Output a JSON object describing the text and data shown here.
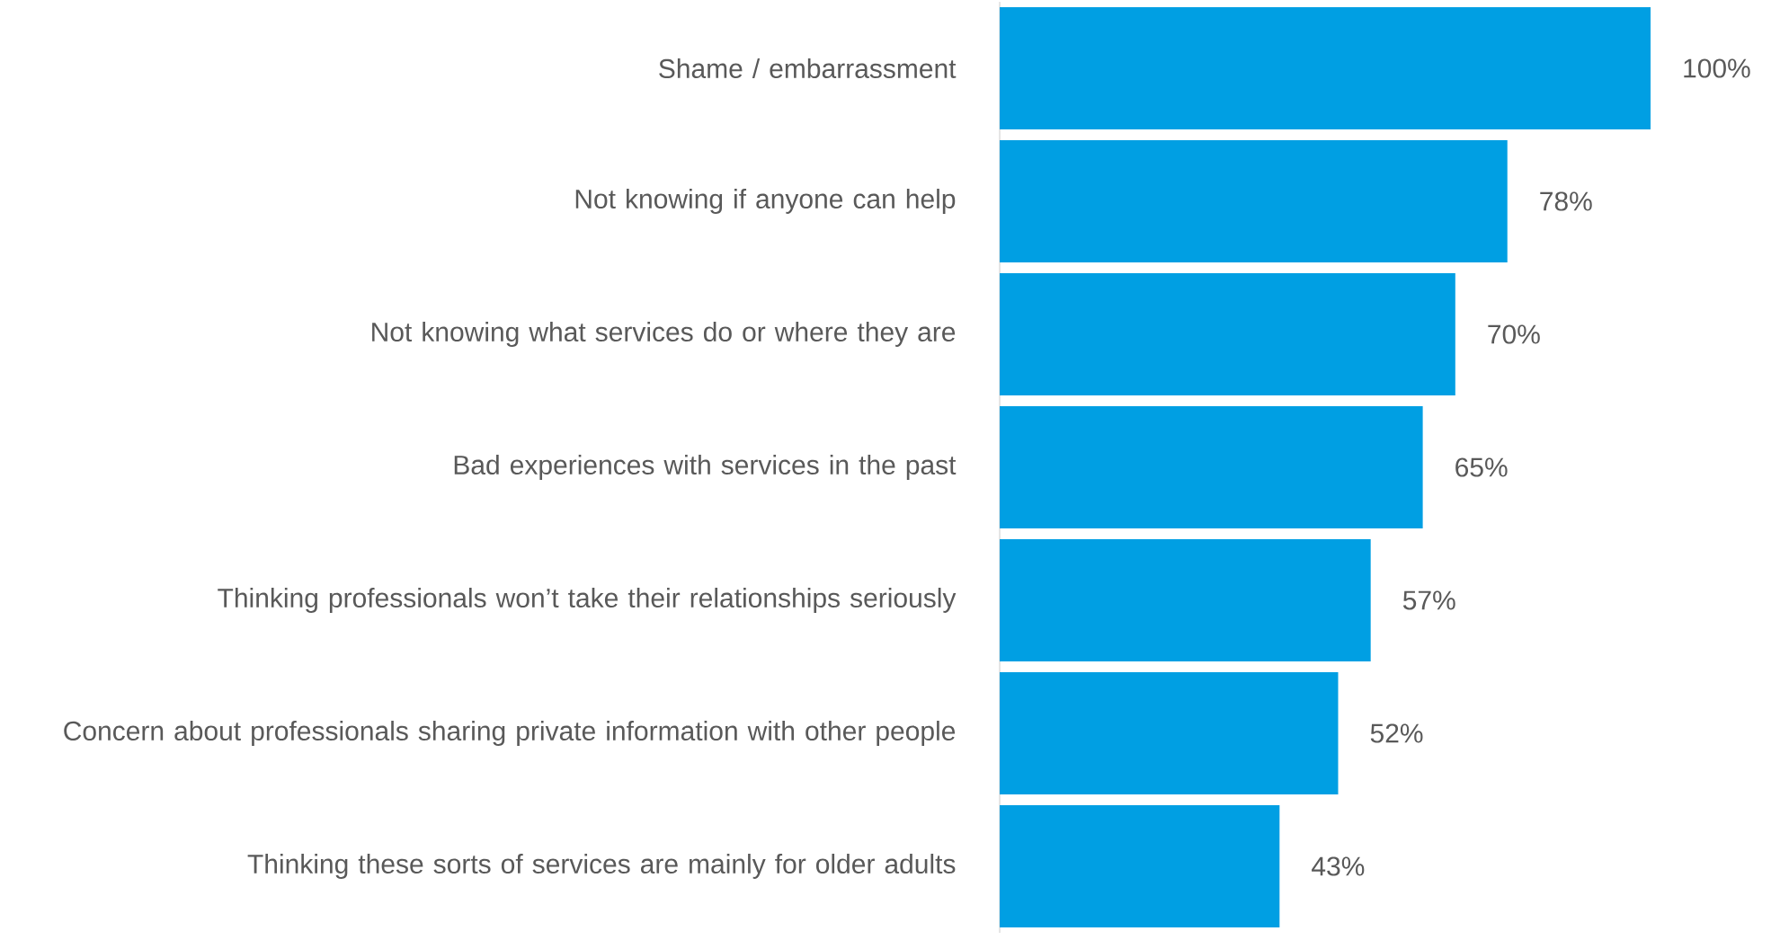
{
  "chart_data": {
    "type": "bar",
    "orientation": "horizontal",
    "tick_labels": "y",
    "color": "#009fe3",
    "categories": [
      "Shame / embarrassment",
      "Not knowing if anyone can help",
      "Not knowing what services do or where they are",
      "Bad experiences with services in the past",
      "Thinking professionals won’t take their relationships seriously",
      "Concern about professionals sharing private information with other people",
      "Thinking these sorts of services are mainly for older adults"
    ],
    "values": [
      100,
      78,
      70,
      65,
      57,
      52,
      43
    ],
    "value_labels": [
      "100%",
      "78%",
      "70%",
      "65%",
      "57%",
      "52%",
      "43%"
    ]
  }
}
